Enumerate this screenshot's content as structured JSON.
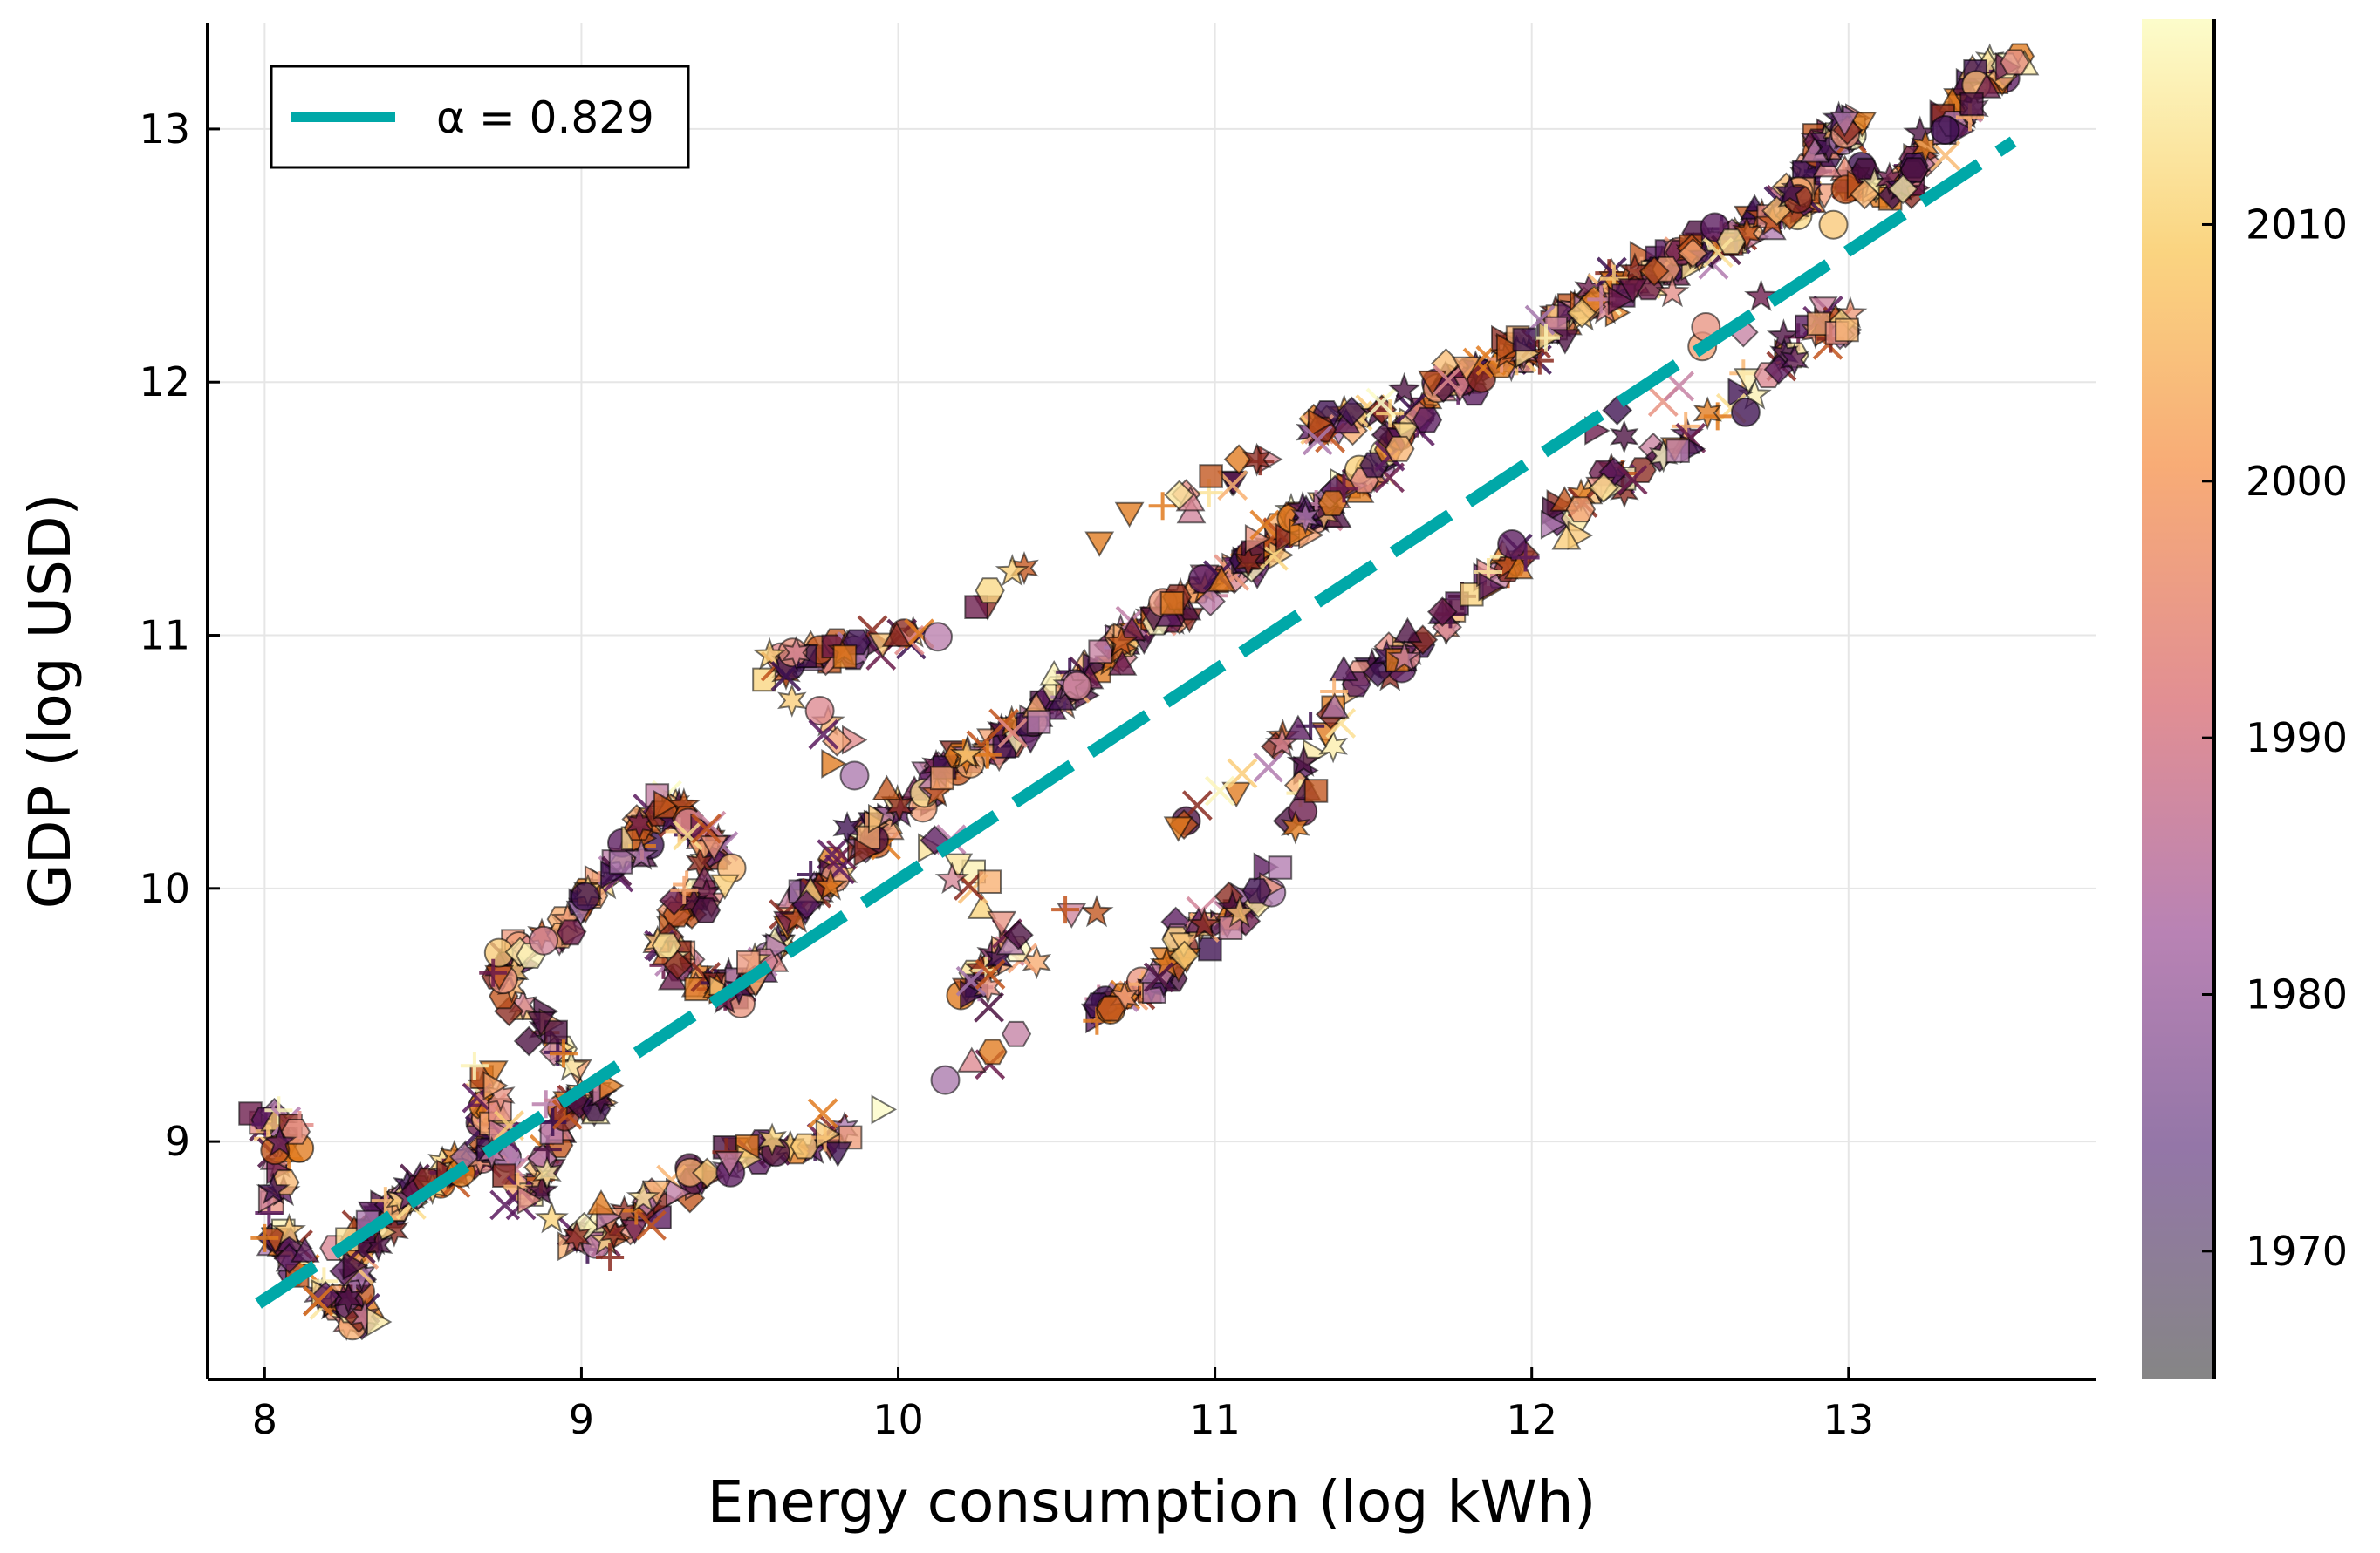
{
  "chart_data": {
    "type": "scatter",
    "title": "",
    "xlabel": "Energy consumption (log kWh)",
    "ylabel": "GDP (log USD)",
    "xlim": [
      7.82,
      13.78
    ],
    "ylim": [
      8.06,
      13.42
    ],
    "xticks": [
      8,
      9,
      10,
      11,
      12,
      13
    ],
    "yticks": [
      9,
      10,
      11,
      12,
      13
    ],
    "grid": true,
    "legend": {
      "position": "top-left",
      "entries": [
        "α = 0.829"
      ]
    },
    "fit_line": {
      "name": "α = 0.829",
      "color": "#00a8a8",
      "style": "dashed",
      "x": [
        7.98,
        13.52
      ],
      "y": [
        8.36,
        12.95
      ]
    },
    "colorbar": {
      "label_ticks": [
        1970,
        1980,
        1990,
        2000,
        2010
      ],
      "range": [
        1965,
        2018
      ],
      "colormap": [
        "#7f7f7f",
        "#8e6fa3",
        "#b57cb0",
        "#e0898d",
        "#f7a76f",
        "#fad27a",
        "#fcfcc8"
      ]
    },
    "markers": [
      "circle",
      "hexagon",
      "square",
      "triangle-up",
      "triangle-down",
      "triangle-right",
      "diamond",
      "cross",
      "plus",
      "star",
      "star6"
    ],
    "series_path": [
      [
        7.98,
        9.05
      ],
      [
        8.08,
        9.08
      ],
      [
        8.02,
        8.67
      ],
      [
        8.15,
        8.45
      ],
      [
        8.3,
        8.28
      ],
      [
        8.28,
        8.6
      ],
      [
        8.4,
        8.75
      ],
      [
        8.55,
        8.85
      ],
      [
        8.7,
        8.95
      ],
      [
        8.7,
        9.3
      ],
      [
        8.8,
        8.72
      ],
      [
        8.95,
        9.1
      ],
      [
        9.05,
        9.2
      ],
      [
        8.72,
        9.65
      ],
      [
        8.9,
        9.8
      ],
      [
        9.1,
        10.05
      ],
      [
        9.25,
        10.35
      ],
      [
        9.35,
        10.25
      ],
      [
        9.45,
        10.1
      ],
      [
        9.25,
        9.8
      ],
      [
        9.4,
        9.6
      ],
      [
        9.55,
        9.6
      ],
      [
        9.7,
        9.95
      ],
      [
        9.85,
        10.15
      ],
      [
        10.0,
        10.3
      ],
      [
        10.2,
        10.5
      ],
      [
        10.35,
        10.6
      ],
      [
        10.5,
        10.75
      ],
      [
        10.65,
        10.9
      ],
      [
        10.8,
        11.05
      ],
      [
        10.95,
        11.15
      ],
      [
        11.1,
        11.3
      ],
      [
        11.25,
        11.45
      ],
      [
        11.4,
        11.55
      ],
      [
        11.55,
        11.75
      ],
      [
        11.7,
        11.95
      ],
      [
        11.85,
        12.05
      ],
      [
        12.0,
        12.15
      ],
      [
        12.15,
        12.3
      ],
      [
        12.3,
        12.4
      ],
      [
        12.45,
        12.5
      ],
      [
        12.6,
        12.55
      ],
      [
        12.75,
        12.65
      ],
      [
        12.95,
        12.8
      ],
      [
        13.15,
        12.75
      ],
      [
        13.3,
        12.95
      ],
      [
        13.4,
        13.2
      ],
      [
        13.55,
        13.25
      ],
      [
        9.85,
        9.05
      ],
      [
        9.4,
        8.9
      ],
      [
        9.1,
        8.6
      ],
      [
        8.95,
        8.65
      ],
      [
        10.6,
        9.5
      ],
      [
        10.8,
        9.6
      ],
      [
        10.95,
        9.85
      ],
      [
        11.15,
        9.95
      ],
      [
        11.4,
        10.8
      ],
      [
        11.7,
        11.0
      ],
      [
        12.0,
        11.4
      ],
      [
        12.4,
        11.7
      ],
      [
        12.9,
        12.2
      ],
      [
        13.0,
        12.25
      ],
      [
        10.2,
        9.6
      ],
      [
        10.4,
        9.8
      ],
      [
        9.6,
        10.85
      ],
      [
        9.8,
        10.95
      ],
      [
        10.1,
        11.0
      ],
      [
        11.3,
        11.8
      ],
      [
        11.5,
        11.9
      ],
      [
        12.8,
        12.65
      ],
      [
        12.9,
        12.9
      ],
      [
        13.0,
        13.0
      ]
    ]
  }
}
